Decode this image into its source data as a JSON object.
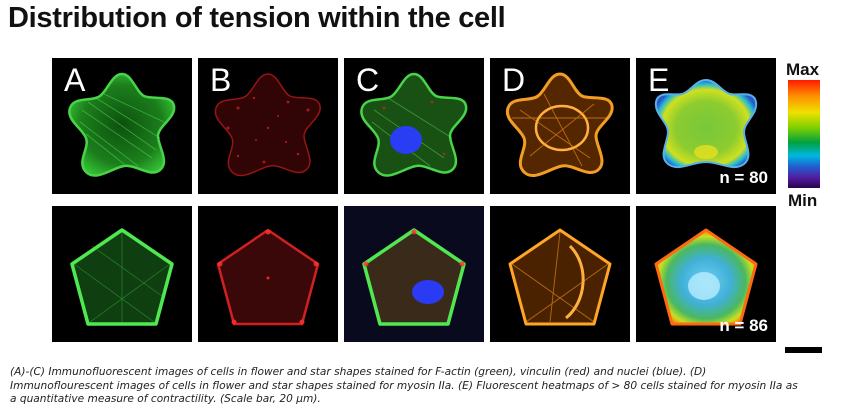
{
  "title": "Distribution of tension within the cell",
  "panels": [
    {
      "label": "A",
      "count": ""
    },
    {
      "label": "B",
      "count": ""
    },
    {
      "label": "C",
      "count": ""
    },
    {
      "label": "D",
      "count": ""
    },
    {
      "label": "E",
      "count": "n = 80"
    }
  ],
  "bottom_row": {
    "count": "n = 86"
  },
  "colorbar": {
    "max_label": "Max",
    "min_label": "Min"
  },
  "caption": "(A)-(C) Immunofluorescent images of cells in flower and star shapes stained for F-actin (green), vinculin (red) and nuclei (blue). (D) Immunoflourescent images of cells in flower and star shapes stained for myosin IIa. (E) Fluorescent heatmaps of > 80 cells stained for myosin IIa as a quantitative measure of contractility. (Scale bar, 20  μm).",
  "colors": {
    "actin": "#2fd62f",
    "vinculin": "#e01818",
    "nucleus": "#2a3cff",
    "myosin": "#ff9a1a"
  }
}
